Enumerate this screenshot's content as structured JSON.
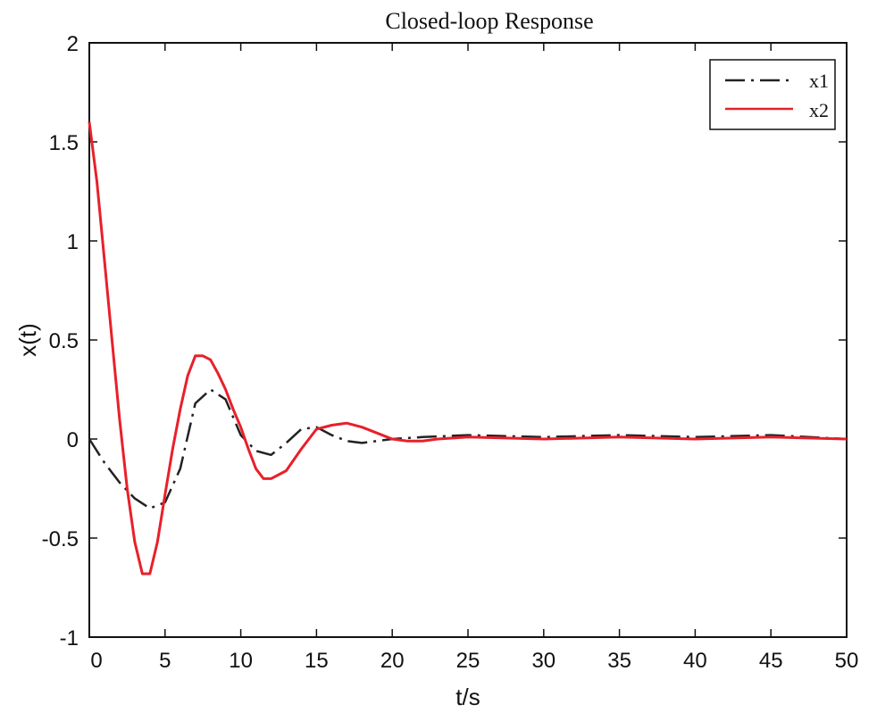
{
  "chart_data": {
    "type": "line",
    "title": "Closed-loop Response",
    "xlabel": "t/s",
    "ylabel": "x(t)",
    "xlim": [
      0,
      50
    ],
    "ylim": [
      -1,
      2
    ],
    "xticks": [
      0,
      5,
      10,
      15,
      20,
      25,
      30,
      35,
      40,
      45,
      50
    ],
    "yticks": [
      -1,
      -0.5,
      0,
      0.5,
      1,
      1.5,
      2
    ],
    "xtick_labels": [
      "0",
      "5",
      "10",
      "15",
      "20",
      "25",
      "30",
      "35",
      "40",
      "45",
      "50"
    ],
    "ytick_labels": [
      "-1",
      "-0.5",
      "0",
      "0.5",
      "1",
      "1.5",
      "2"
    ],
    "grid": false,
    "legend_position": "top-right",
    "series": [
      {
        "name": "x1",
        "color": "#222222",
        "style": "dash-dot",
        "x": [
          0,
          1,
          2,
          3,
          4,
          5,
          6,
          7,
          8,
          9,
          10,
          11,
          12,
          13,
          14,
          15,
          16,
          17,
          18,
          19,
          20,
          22,
          25,
          30,
          35,
          40,
          45,
          50
        ],
        "y": [
          0,
          -0.12,
          -0.22,
          -0.3,
          -0.35,
          -0.32,
          -0.15,
          0.18,
          0.25,
          0.2,
          0.02,
          -0.06,
          -0.08,
          -0.02,
          0.05,
          0.06,
          0.02,
          -0.01,
          -0.02,
          -0.01,
          0.0,
          0.01,
          0.02,
          0.01,
          0.02,
          0.01,
          0.02,
          0.0
        ]
      },
      {
        "name": "x2",
        "color": "#e8202a",
        "style": "solid",
        "x": [
          0,
          0.5,
          1,
          1.5,
          2,
          2.5,
          3,
          3.5,
          4,
          4.5,
          5,
          5.5,
          6,
          6.5,
          7,
          7.5,
          8,
          8.5,
          9,
          9.5,
          10,
          10.5,
          11,
          11.5,
          12,
          12.5,
          13,
          14,
          15,
          16,
          17,
          18,
          19,
          20,
          21,
          22,
          23,
          25,
          30,
          35,
          40,
          45,
          50
        ],
        "y": [
          1.6,
          1.3,
          0.9,
          0.5,
          0.1,
          -0.25,
          -0.52,
          -0.68,
          -0.68,
          -0.52,
          -0.28,
          -0.05,
          0.15,
          0.32,
          0.42,
          0.42,
          0.4,
          0.33,
          0.25,
          0.15,
          0.06,
          -0.05,
          -0.15,
          -0.2,
          -0.2,
          -0.18,
          -0.16,
          -0.05,
          0.05,
          0.07,
          0.08,
          0.06,
          0.03,
          0.0,
          -0.01,
          -0.01,
          0.0,
          0.01,
          0.0,
          0.01,
          0.0,
          0.01,
          0.0
        ]
      }
    ]
  }
}
